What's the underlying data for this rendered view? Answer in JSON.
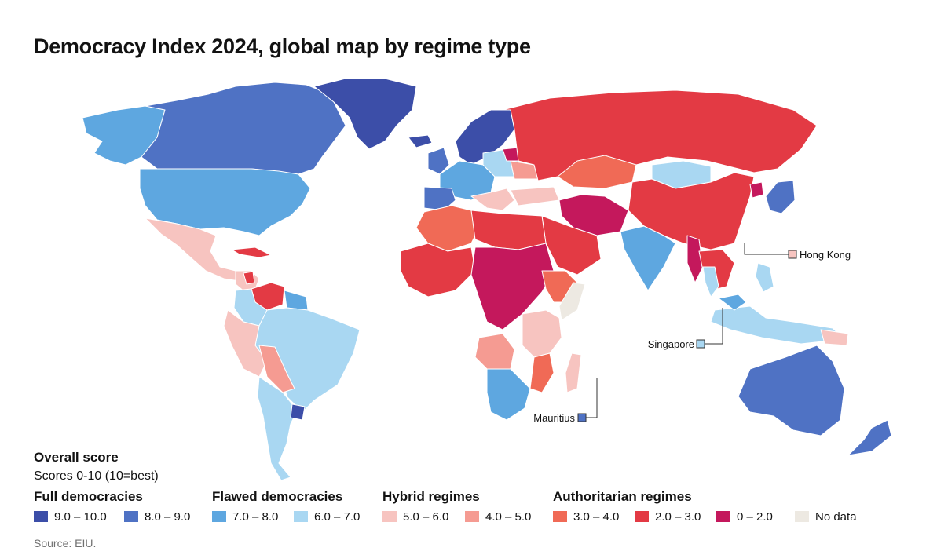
{
  "title": "Democracy Index 2024, global map by regime type",
  "colors": {
    "full_high": "#3c4ea8",
    "full_low": "#4f72c4",
    "flawed_high": "#5ea7e0",
    "flawed_low": "#a9d7f2",
    "hybrid_high": "#f7c4c0",
    "hybrid_low": "#f59b92",
    "auth_high": "#f06a56",
    "auth_mid": "#e33a44",
    "auth_low": "#c4185c",
    "no_data": "#ede9e2",
    "border": "#ffffff"
  },
  "callouts": {
    "hong_kong": "Hong Kong",
    "singapore": "Singapore",
    "mauritius": "Mauritius"
  },
  "legend": {
    "heading": "Overall score",
    "subheading": "Scores 0-10 (10=best)",
    "groups": {
      "full": "Full democracies",
      "flawed": "Flawed democracies",
      "hybrid": "Hybrid regimes",
      "authoritarian": "Authoritarian regimes"
    },
    "items": [
      {
        "label": "9.0 – 10.0",
        "color": "#3c4ea8"
      },
      {
        "label": "8.0 – 9.0",
        "color": "#4f72c4"
      },
      {
        "label": "7.0 – 8.0",
        "color": "#5ea7e0"
      },
      {
        "label": "6.0 – 7.0",
        "color": "#a9d7f2"
      },
      {
        "label": "5.0 – 6.0",
        "color": "#f7c4c0"
      },
      {
        "label": "4.0 – 5.0",
        "color": "#f59b92"
      },
      {
        "label": "3.0 – 4.0",
        "color": "#f06a56"
      },
      {
        "label": "2.0 – 3.0",
        "color": "#e33a44"
      },
      {
        "label": "0 – 2.0",
        "color": "#c4185c"
      },
      {
        "label": "No data",
        "color": "#ede9e2"
      }
    ]
  },
  "source": "Source: EIU."
}
